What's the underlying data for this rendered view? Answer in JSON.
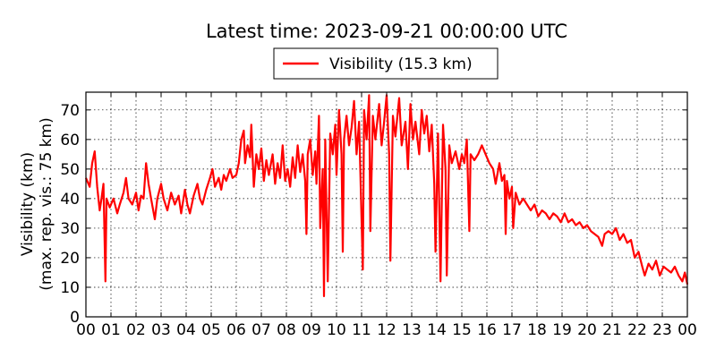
{
  "chart_data": {
    "type": "line",
    "title": "Latest time: 2023-09-21 00:00:00 UTC",
    "ylabel_line1": "Visibility (km)",
    "ylabel_line2": "(max. rep. vis.: 75 km)",
    "xlabel": "",
    "xlim": [
      0,
      24
    ],
    "ylim": [
      0,
      76
    ],
    "x_ticks": [
      "00",
      "01",
      "02",
      "03",
      "04",
      "05",
      "06",
      "07",
      "08",
      "09",
      "10",
      "11",
      "12",
      "13",
      "14",
      "15",
      "16",
      "17",
      "18",
      "19",
      "20",
      "21",
      "22",
      "23",
      "00"
    ],
    "y_ticks": [
      0,
      10,
      20,
      30,
      40,
      50,
      60,
      70
    ],
    "grid": true,
    "legend_position": "top-center",
    "series": [
      {
        "name": "Visibility (15.3 km)",
        "color": "#ff0000",
        "points": [
          [
            0.0,
            47
          ],
          [
            0.15,
            44
          ],
          [
            0.25,
            52
          ],
          [
            0.35,
            56
          ],
          [
            0.45,
            44
          ],
          [
            0.55,
            36
          ],
          [
            0.62,
            40
          ],
          [
            0.7,
            45
          ],
          [
            0.78,
            12
          ],
          [
            0.82,
            40
          ],
          [
            0.95,
            37
          ],
          [
            1.1,
            40
          ],
          [
            1.25,
            35
          ],
          [
            1.35,
            38
          ],
          [
            1.5,
            42
          ],
          [
            1.6,
            47
          ],
          [
            1.7,
            40
          ],
          [
            1.85,
            38
          ],
          [
            2.0,
            42
          ],
          [
            2.1,
            36
          ],
          [
            2.2,
            41
          ],
          [
            2.3,
            40
          ],
          [
            2.4,
            52
          ],
          [
            2.5,
            45
          ],
          [
            2.6,
            40
          ],
          [
            2.75,
            33
          ],
          [
            2.85,
            40
          ],
          [
            3.0,
            45
          ],
          [
            3.1,
            40
          ],
          [
            3.25,
            36
          ],
          [
            3.4,
            42
          ],
          [
            3.55,
            38
          ],
          [
            3.7,
            41
          ],
          [
            3.8,
            35
          ],
          [
            3.95,
            43
          ],
          [
            4.05,
            38
          ],
          [
            4.15,
            35
          ],
          [
            4.3,
            41
          ],
          [
            4.45,
            45
          ],
          [
            4.55,
            40
          ],
          [
            4.65,
            38
          ],
          [
            4.8,
            43
          ],
          [
            4.95,
            47
          ],
          [
            5.05,
            50
          ],
          [
            5.15,
            44
          ],
          [
            5.3,
            47
          ],
          [
            5.4,
            43
          ],
          [
            5.5,
            48
          ],
          [
            5.6,
            46
          ],
          [
            5.75,
            50
          ],
          [
            5.85,
            47
          ],
          [
            6.0,
            48
          ],
          [
            6.1,
            52
          ],
          [
            6.2,
            60
          ],
          [
            6.3,
            63
          ],
          [
            6.35,
            52
          ],
          [
            6.45,
            58
          ],
          [
            6.55,
            54
          ],
          [
            6.6,
            65
          ],
          [
            6.7,
            44
          ],
          [
            6.8,
            55
          ],
          [
            6.9,
            50
          ],
          [
            7.0,
            57
          ],
          [
            7.1,
            46
          ],
          [
            7.2,
            53
          ],
          [
            7.3,
            48
          ],
          [
            7.45,
            55
          ],
          [
            7.55,
            45
          ],
          [
            7.65,
            52
          ],
          [
            7.75,
            47
          ],
          [
            7.85,
            58
          ],
          [
            7.95,
            46
          ],
          [
            8.05,
            50
          ],
          [
            8.15,
            44
          ],
          [
            8.25,
            54
          ],
          [
            8.35,
            47
          ],
          [
            8.45,
            58
          ],
          [
            8.55,
            49
          ],
          [
            8.65,
            55
          ],
          [
            8.75,
            46
          ],
          [
            8.8,
            28
          ],
          [
            8.85,
            55
          ],
          [
            8.95,
            60
          ],
          [
            9.05,
            48
          ],
          [
            9.15,
            56
          ],
          [
            9.2,
            45
          ],
          [
            9.3,
            68
          ],
          [
            9.35,
            30
          ],
          [
            9.45,
            50
          ],
          [
            9.5,
            7
          ],
          [
            9.55,
            60
          ],
          [
            9.65,
            12
          ],
          [
            9.75,
            62
          ],
          [
            9.85,
            55
          ],
          [
            9.95,
            65
          ],
          [
            10.0,
            48
          ],
          [
            10.1,
            70
          ],
          [
            10.2,
            55
          ],
          [
            10.25,
            22
          ],
          [
            10.3,
            60
          ],
          [
            10.4,
            68
          ],
          [
            10.5,
            58
          ],
          [
            10.6,
            64
          ],
          [
            10.7,
            73
          ],
          [
            10.8,
            55
          ],
          [
            10.9,
            66
          ],
          [
            11.05,
            16
          ],
          [
            11.1,
            70
          ],
          [
            11.2,
            60
          ],
          [
            11.3,
            75
          ],
          [
            11.35,
            29
          ],
          [
            11.45,
            68
          ],
          [
            11.55,
            60
          ],
          [
            11.7,
            72
          ],
          [
            11.8,
            58
          ],
          [
            11.9,
            66
          ],
          [
            12.0,
            75
          ],
          [
            12.1,
            55
          ],
          [
            12.15,
            19
          ],
          [
            12.25,
            68
          ],
          [
            12.35,
            61
          ],
          [
            12.5,
            74
          ],
          [
            12.6,
            58
          ],
          [
            12.75,
            66
          ],
          [
            12.85,
            50
          ],
          [
            12.95,
            72
          ],
          [
            13.05,
            60
          ],
          [
            13.15,
            66
          ],
          [
            13.3,
            55
          ],
          [
            13.4,
            70
          ],
          [
            13.5,
            62
          ],
          [
            13.6,
            68
          ],
          [
            13.7,
            56
          ],
          [
            13.8,
            65
          ],
          [
            13.9,
            45
          ],
          [
            13.95,
            22
          ],
          [
            14.05,
            62
          ],
          [
            14.15,
            12
          ],
          [
            14.25,
            65
          ],
          [
            14.35,
            50
          ],
          [
            14.4,
            14
          ],
          [
            14.5,
            58
          ],
          [
            14.6,
            52
          ],
          [
            14.75,
            56
          ],
          [
            14.9,
            50
          ],
          [
            15.0,
            55
          ],
          [
            15.1,
            52
          ],
          [
            15.2,
            60
          ],
          [
            15.3,
            29
          ],
          [
            15.35,
            55
          ],
          [
            15.5,
            53
          ],
          [
            15.65,
            55
          ],
          [
            15.8,
            58
          ],
          [
            15.95,
            55
          ],
          [
            16.1,
            52
          ],
          [
            16.25,
            50
          ],
          [
            16.35,
            45
          ],
          [
            16.5,
            52
          ],
          [
            16.6,
            46
          ],
          [
            16.7,
            48
          ],
          [
            16.75,
            28
          ],
          [
            16.8,
            46
          ],
          [
            16.9,
            40
          ],
          [
            17.0,
            44
          ],
          [
            17.05,
            30
          ],
          [
            17.15,
            42
          ],
          [
            17.3,
            38
          ],
          [
            17.45,
            40
          ],
          [
            17.6,
            38
          ],
          [
            17.75,
            36
          ],
          [
            17.9,
            38
          ],
          [
            18.05,
            34
          ],
          [
            18.2,
            36
          ],
          [
            18.35,
            35
          ],
          [
            18.5,
            33
          ],
          [
            18.65,
            35
          ],
          [
            18.8,
            34
          ],
          [
            18.95,
            32
          ],
          [
            19.1,
            35
          ],
          [
            19.25,
            32
          ],
          [
            19.4,
            33
          ],
          [
            19.55,
            31
          ],
          [
            19.7,
            32
          ],
          [
            19.85,
            30
          ],
          [
            20.0,
            31
          ],
          [
            20.15,
            29
          ],
          [
            20.3,
            28
          ],
          [
            20.45,
            27
          ],
          [
            20.6,
            24
          ],
          [
            20.7,
            28
          ],
          [
            20.85,
            29
          ],
          [
            21.0,
            28
          ],
          [
            21.15,
            30
          ],
          [
            21.3,
            26
          ],
          [
            21.45,
            28
          ],
          [
            21.6,
            25
          ],
          [
            21.75,
            26
          ],
          [
            21.9,
            20
          ],
          [
            22.05,
            22
          ],
          [
            22.2,
            17
          ],
          [
            22.3,
            14
          ],
          [
            22.45,
            18
          ],
          [
            22.6,
            16
          ],
          [
            22.75,
            19
          ],
          [
            22.9,
            14
          ],
          [
            23.05,
            17
          ],
          [
            23.2,
            16
          ],
          [
            23.35,
            15
          ],
          [
            23.5,
            17
          ],
          [
            23.65,
            14
          ],
          [
            23.8,
            12
          ],
          [
            23.9,
            15
          ],
          [
            24.0,
            11
          ]
        ]
      }
    ]
  }
}
